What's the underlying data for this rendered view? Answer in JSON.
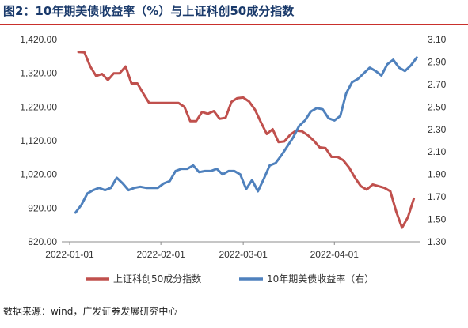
{
  "chart_data": {
    "type": "line",
    "title": "图2：10年期美债收益率（%）与上证科创50成分指数",
    "x_ticks": [
      "2022-01-01",
      "2022-02-01",
      "2022-03-01",
      "2022-04-01"
    ],
    "x_range": [
      "2022-01-01",
      "2022-04-30"
    ],
    "y_left": {
      "min": 820,
      "max": 1420,
      "ticks": [
        "820.00",
        "920.00",
        "1,020.00",
        "1,120.00",
        "1,220.00",
        "1,320.00",
        "1,420.00"
      ]
    },
    "y_right": {
      "min": 1.3,
      "max": 3.1,
      "ticks": [
        "1.30",
        "1.50",
        "1.70",
        "1.90",
        "2.10",
        "2.30",
        "2.50",
        "2.70",
        "2.90",
        "3.10"
      ]
    },
    "grid": false,
    "legend_position": "bottom",
    "series": [
      {
        "name": "上证科创50成分指数",
        "axis": "left",
        "color": "#c0504d",
        "x": [
          "2022-01-04",
          "2022-01-06",
          "2022-01-08",
          "2022-01-10",
          "2022-01-12",
          "2022-01-14",
          "2022-01-16",
          "2022-01-18",
          "2022-01-20",
          "2022-01-22",
          "2022-01-24",
          "2022-01-26",
          "2022-01-28",
          "2022-01-30",
          "2022-02-01",
          "2022-02-03",
          "2022-02-05",
          "2022-02-07",
          "2022-02-09",
          "2022-02-11",
          "2022-02-13",
          "2022-02-15",
          "2022-02-17",
          "2022-02-19",
          "2022-02-21",
          "2022-02-23",
          "2022-02-25",
          "2022-02-27",
          "2022-03-01",
          "2022-03-03",
          "2022-03-05",
          "2022-03-07",
          "2022-03-09",
          "2022-03-11",
          "2022-03-13",
          "2022-03-15",
          "2022-03-17",
          "2022-03-19",
          "2022-03-21",
          "2022-03-23",
          "2022-03-25",
          "2022-03-27",
          "2022-03-29",
          "2022-03-31",
          "2022-04-02",
          "2022-04-04",
          "2022-04-06",
          "2022-04-08",
          "2022-04-10",
          "2022-04-12",
          "2022-04-14",
          "2022-04-16",
          "2022-04-18",
          "2022-04-20",
          "2022-04-22",
          "2022-04-24",
          "2022-04-26",
          "2022-04-28"
        ],
        "values": [
          1383,
          1382,
          1340,
          1312,
          1318,
          1300,
          1320,
          1320,
          1340,
          1290,
          1290,
          1260,
          1232,
          1232,
          1232,
          1232,
          1232,
          1232,
          1220,
          1178,
          1178,
          1205,
          1200,
          1208,
          1185,
          1188,
          1235,
          1246,
          1248,
          1236,
          1212,
          1175,
          1140,
          1154,
          1116,
          1118,
          1138,
          1150,
          1148,
          1136,
          1120,
          1100,
          1098,
          1072,
          1072,
          1062,
          1040,
          1010,
          985,
          975,
          990,
          985,
          980,
          970,
          910,
          862,
          893,
          948
        ]
      },
      {
        "name": "10年期美债收益率（右）",
        "axis": "right",
        "color": "#4f81bd",
        "x": [
          "2022-01-03",
          "2022-01-05",
          "2022-01-07",
          "2022-01-09",
          "2022-01-11",
          "2022-01-13",
          "2022-01-15",
          "2022-01-17",
          "2022-01-19",
          "2022-01-21",
          "2022-01-23",
          "2022-01-25",
          "2022-01-27",
          "2022-01-29",
          "2022-01-31",
          "2022-02-02",
          "2022-02-04",
          "2022-02-06",
          "2022-02-08",
          "2022-02-10",
          "2022-02-12",
          "2022-02-14",
          "2022-02-16",
          "2022-02-18",
          "2022-02-20",
          "2022-02-22",
          "2022-02-24",
          "2022-02-26",
          "2022-02-28",
          "2022-03-02",
          "2022-03-04",
          "2022-03-06",
          "2022-03-08",
          "2022-03-10",
          "2022-03-12",
          "2022-03-14",
          "2022-03-16",
          "2022-03-18",
          "2022-03-20",
          "2022-03-22",
          "2022-03-24",
          "2022-03-26",
          "2022-03-28",
          "2022-03-30",
          "2022-04-01",
          "2022-04-03",
          "2022-04-05",
          "2022-04-07",
          "2022-04-09",
          "2022-04-11",
          "2022-04-13",
          "2022-04-15",
          "2022-04-17",
          "2022-04-19",
          "2022-04-21",
          "2022-04-23",
          "2022-04-25",
          "2022-04-27",
          "2022-04-29"
        ],
        "values": [
          1.56,
          1.63,
          1.73,
          1.76,
          1.78,
          1.76,
          1.78,
          1.87,
          1.82,
          1.76,
          1.78,
          1.79,
          1.78,
          1.78,
          1.78,
          1.82,
          1.84,
          1.93,
          1.95,
          1.95,
          1.98,
          1.92,
          1.93,
          1.93,
          1.95,
          1.9,
          1.93,
          1.93,
          1.9,
          1.77,
          1.85,
          1.75,
          1.86,
          1.98,
          2.0,
          2.07,
          2.15,
          2.23,
          2.33,
          2.38,
          2.46,
          2.49,
          2.48,
          2.4,
          2.38,
          2.42,
          2.62,
          2.72,
          2.75,
          2.8,
          2.85,
          2.82,
          2.78,
          2.88,
          2.92,
          2.85,
          2.82,
          2.87,
          2.94
        ]
      }
    ]
  },
  "source": "数据来源：wind，广发证券发展研究中心"
}
